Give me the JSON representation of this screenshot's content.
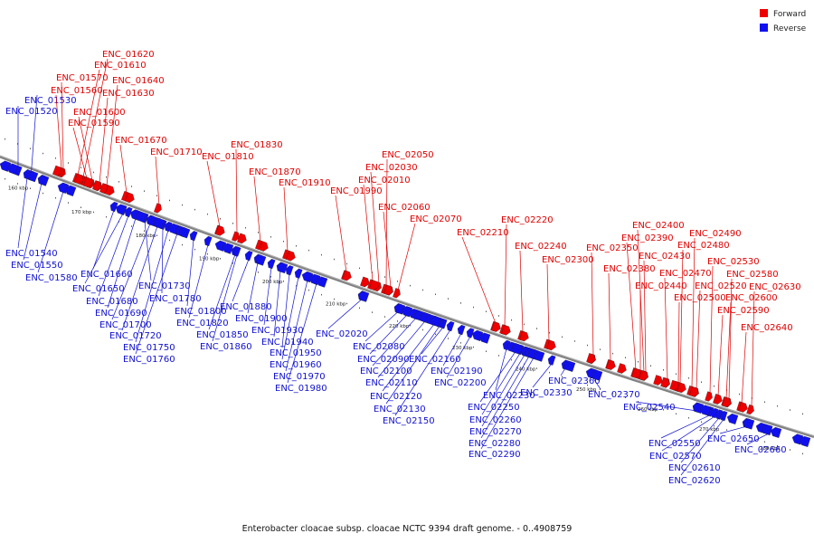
{
  "caption": "Enterobacter cloacae subsp. cloacae NCTC 9394 draft genome. - 0..4908759",
  "legend": [
    {
      "label": "Forward",
      "color": "#ee0000"
    },
    {
      "label": "Reverse",
      "color": "#1010ee"
    }
  ],
  "colors": {
    "forward": "#ee0000",
    "reverse": "#1010ee",
    "backbone": "#808080"
  },
  "scale_ticks": [
    "160 kbp",
    "170 kbp",
    "180 kbp",
    "190 kbp",
    "200 kbp",
    "210 kbp",
    "220 kbp",
    "230 kbp",
    "240 kbp",
    "250 kbp",
    "260 kbp",
    "270 kbp",
    "280 kbp"
  ],
  "forward_genes": [
    "ENC_01620",
    "ENC_01610",
    "ENC_01570",
    "ENC_01640",
    "ENC_01560",
    "ENC_01630",
    "ENC_01600",
    "ENC_01590",
    "ENC_01670",
    "ENC_01710",
    "ENC_01830",
    "ENC_01810",
    "ENC_01870",
    "ENC_01910",
    "ENC_02050",
    "ENC_02030",
    "ENC_02010",
    "ENC_01990",
    "ENC_02060",
    "ENC_02070",
    "ENC_02220",
    "ENC_02210",
    "ENC_02240",
    "ENC_02300",
    "ENC_02400",
    "ENC_02350",
    "ENC_02390",
    "ENC_02490",
    "ENC_02480",
    "ENC_02380",
    "ENC_02430",
    "ENC_02470",
    "ENC_02530",
    "ENC_02440",
    "ENC_02580",
    "ENC_02520",
    "ENC_02630",
    "ENC_02500",
    "ENC_02600",
    "ENC_02590",
    "ENC_02640"
  ],
  "reverse_genes": [
    "ENC_01530",
    "ENC_01520",
    "ENC_01540",
    "ENC_01550",
    "ENC_01580",
    "ENC_01660",
    "ENC_01650",
    "ENC_01730",
    "ENC_01680",
    "ENC_01780",
    "ENC_01690",
    "ENC_01800",
    "ENC_01700",
    "ENC_01820",
    "ENC_01720",
    "ENC_01750",
    "ENC_01760",
    "ENC_01880",
    "ENC_01900",
    "ENC_01850",
    "ENC_01930",
    "ENC_01860",
    "ENC_01940",
    "ENC_01950",
    "ENC_01960",
    "ENC_01970",
    "ENC_01980",
    "ENC_02020",
    "ENC_02080",
    "ENC_02090",
    "ENC_02160",
    "ENC_02100",
    "ENC_02190",
    "ENC_02110",
    "ENC_02200",
    "ENC_02120",
    "ENC_02130",
    "ENC_02150",
    "ENC_02230",
    "ENC_02250",
    "ENC_02260",
    "ENC_02270",
    "ENC_02280",
    "ENC_02290",
    "ENC_02360",
    "ENC_02330",
    "ENC_02370",
    "ENC_02540",
    "ENC_02550",
    "ENC_02570",
    "ENC_02650",
    "ENC_02660",
    "ENC_02610",
    "ENC_02620"
  ]
}
